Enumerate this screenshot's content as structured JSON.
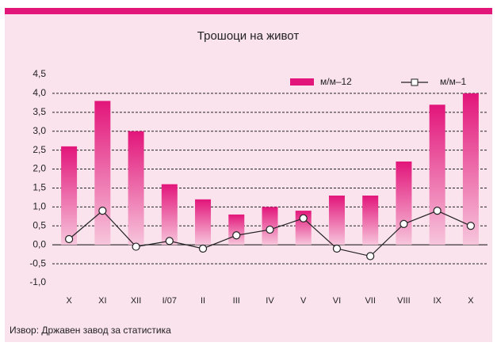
{
  "chart_data": {
    "type": "bar",
    "title": "Трошоци на живот",
    "source": "Извор: Државен завод за статистика",
    "categories": [
      "X",
      "XI",
      "XII",
      "I/07",
      "II",
      "III",
      "IV",
      "V",
      "VI",
      "VII",
      "VIII",
      "IX",
      "X"
    ],
    "series": [
      {
        "name": "м/м–12",
        "type": "bar",
        "color": "#e2157a",
        "values": [
          2.6,
          3.8,
          3.0,
          1.6,
          1.2,
          0.8,
          1.0,
          0.9,
          1.3,
          1.3,
          2.2,
          3.7,
          4.0
        ]
      },
      {
        "name": "м/м–1",
        "type": "line",
        "color": "#222222",
        "values": [
          0.15,
          0.9,
          -0.05,
          0.1,
          -0.1,
          0.25,
          0.4,
          0.7,
          -0.1,
          -0.3,
          0.55,
          0.9,
          0.5
        ]
      }
    ],
    "ylim": [
      -1.0,
      4.5
    ],
    "yticks": [
      {
        "value": -1.0,
        "label": "-1,0"
      },
      {
        "value": -0.5,
        "label": "-0,5"
      },
      {
        "value": 0,
        "label": "0,0"
      },
      {
        "value": 0.5,
        "label": "0,5"
      },
      {
        "value": 1.0,
        "label": "1,0"
      },
      {
        "value": 1.5,
        "label": "1,5"
      },
      {
        "value": 2.0,
        "label": "2,0"
      },
      {
        "value": 2.5,
        "label": "2,5"
      },
      {
        "value": 3.0,
        "label": "3,0"
      },
      {
        "value": 3.5,
        "label": "3,5"
      },
      {
        "value": 4.0,
        "label": "4,0"
      },
      {
        "value": 4.5,
        "label": "4,5"
      }
    ],
    "grid": true,
    "legend": "top-right"
  }
}
